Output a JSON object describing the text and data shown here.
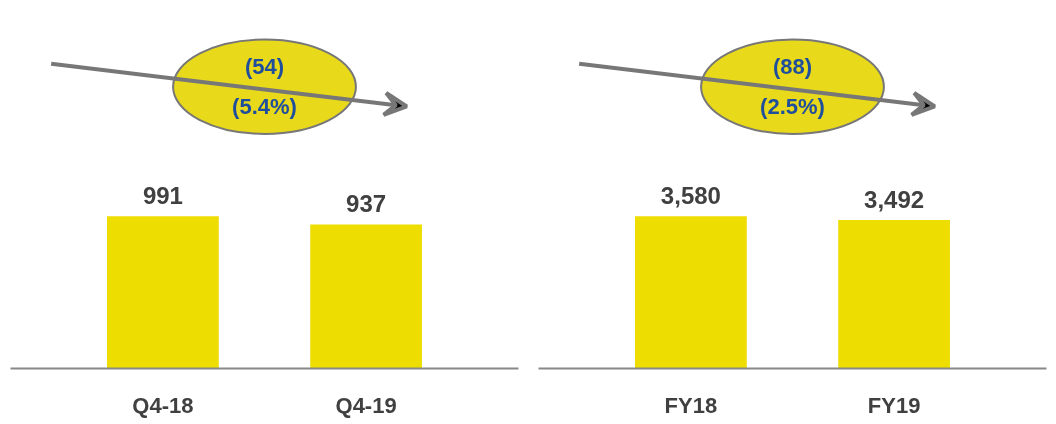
{
  "chart_data": [
    {
      "type": "bar",
      "categories": [
        "Q4-18",
        "Q4-19"
      ],
      "values": [
        991,
        937
      ],
      "color": "#eedd00",
      "value_labels": [
        "991",
        "937"
      ],
      "annotations": [
        "(54)",
        "(5.4%)"
      ]
    },
    {
      "type": "bar",
      "categories": [
        "FY18",
        "FY19"
      ],
      "values": [
        3580,
        3492
      ],
      "color": "#eedd00",
      "value_labels": [
        "3,580",
        "3,492"
      ],
      "annotations": [
        "(88)",
        "(2.5%)"
      ]
    }
  ]
}
